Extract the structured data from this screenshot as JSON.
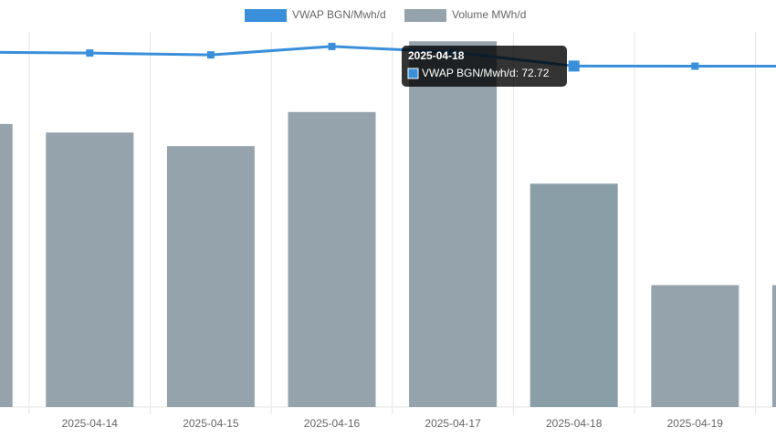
{
  "chart_data": {
    "type": "bar-line",
    "categories": [
      null,
      "2025-04-14",
      "2025-04-15",
      "2025-04-16",
      "2025-04-17",
      "2025-04-18",
      "2025-04-19",
      null
    ],
    "series": [
      {
        "name": "VWAP BGN/Mwh/d",
        "type": "line",
        "axis": "y2",
        "color": "#3a8fdb",
        "values": [
          75.7,
          75.5,
          75.1,
          76.9,
          75.7,
          72.72,
          72.7,
          72.7
        ]
      },
      {
        "name": "Volume MWh/d",
        "type": "bar",
        "color": "#95a3ad",
        "values": [
          3320,
          3220,
          3060,
          3460,
          4290,
          2620,
          1430,
          1430
        ]
      }
    ],
    "ylim": [
      0,
      4400
    ],
    "y2lim": [
      0,
      80
    ],
    "grid": true,
    "legend": "top",
    "tooltip": {
      "text": "VWAP BGN/Mwh/d: 72.72"
    }
  }
}
